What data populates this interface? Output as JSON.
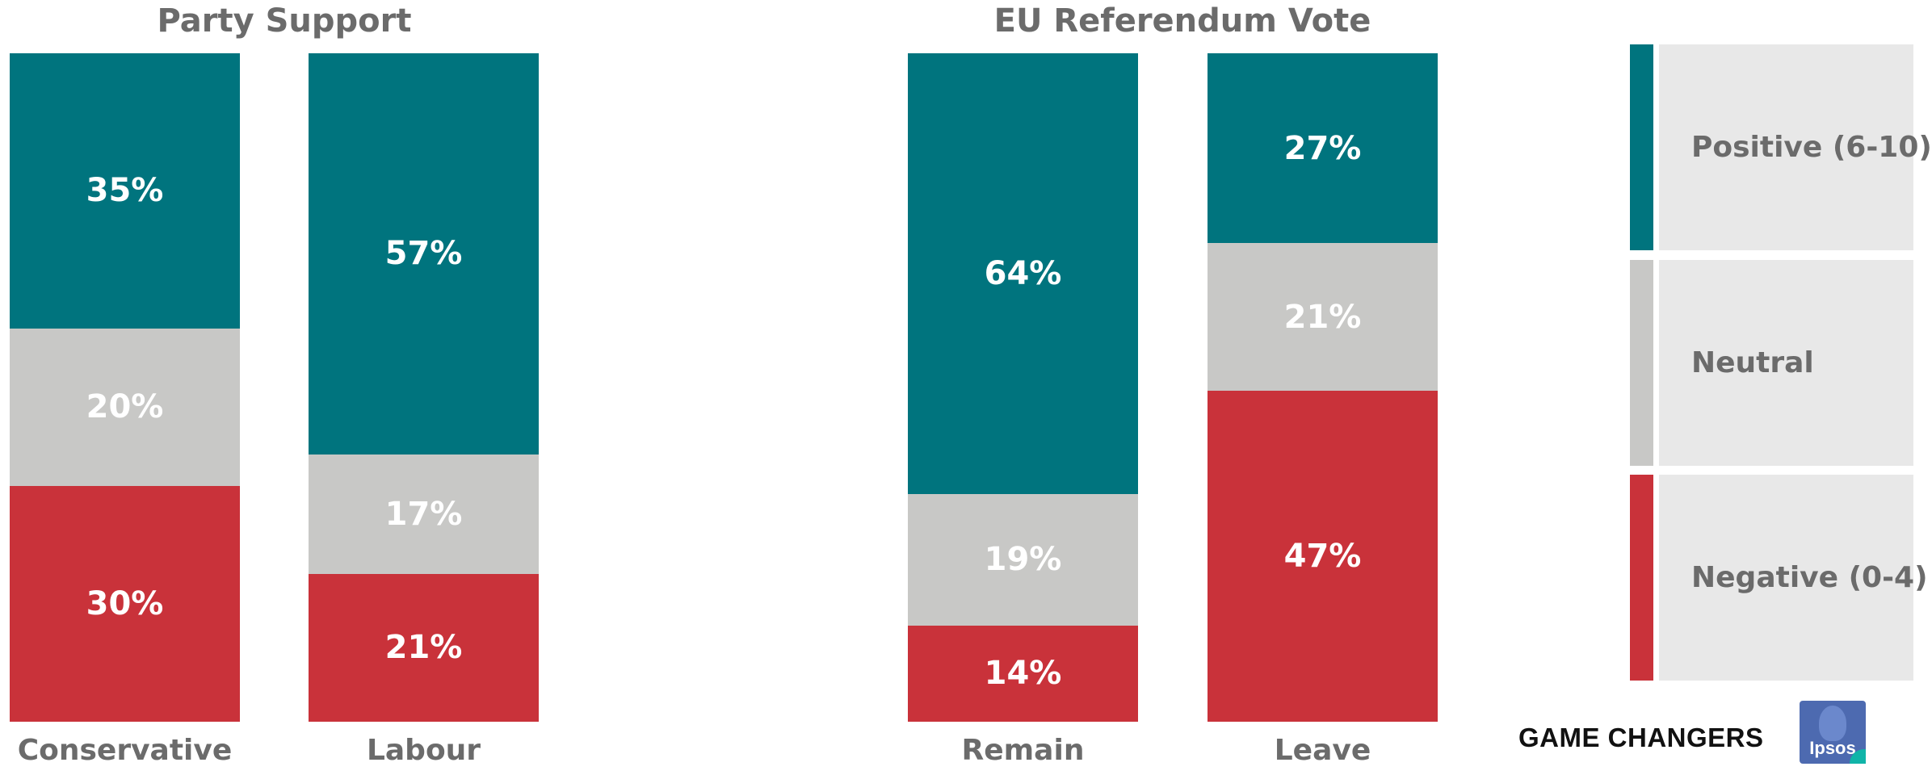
{
  "colors": {
    "positive": "#00747e",
    "neutral": "#c8c8c6",
    "negative": "#c9323a",
    "legend_box": "#e8e8e8",
    "title_text": "#6b6b6b"
  },
  "chart_data": [
    {
      "type": "bar",
      "stacked": true,
      "normalized": true,
      "title": "Party Support",
      "categories": [
        "Conservative",
        "Labour"
      ],
      "series": [
        {
          "name": "Negative (0-4)",
          "values": [
            30,
            21
          ],
          "labels": [
            "30%",
            "21%"
          ],
          "color_key": "negative"
        },
        {
          "name": "Neutral",
          "values": [
            20,
            17
          ],
          "labels": [
            "20%",
            "17%"
          ],
          "color_key": "neutral"
        },
        {
          "name": "Positive (6-10)",
          "values": [
            35,
            57
          ],
          "labels": [
            "35%",
            "57%"
          ],
          "color_key": "positive"
        }
      ]
    },
    {
      "type": "bar",
      "stacked": true,
      "normalized": true,
      "title": "EU Referendum Vote",
      "categories": [
        "Remain",
        "Leave"
      ],
      "series": [
        {
          "name": "Negative (0-4)",
          "values": [
            14,
            47
          ],
          "labels": [
            "14%",
            "47%"
          ],
          "color_key": "negative"
        },
        {
          "name": "Neutral",
          "values": [
            19,
            21
          ],
          "labels": [
            "19%",
            "21%"
          ],
          "color_key": "neutral"
        },
        {
          "name": "Positive (6-10)",
          "values": [
            64,
            27
          ],
          "labels": [
            "64%",
            "27%"
          ],
          "color_key": "positive"
        }
      ]
    }
  ],
  "legend": {
    "placement": "right",
    "items": [
      {
        "label": "Positive (6-10)",
        "color_key": "positive"
      },
      {
        "label": "Neutral",
        "color_key": "neutral"
      },
      {
        "label": "Negative (0-4)",
        "color_key": "negative"
      }
    ]
  },
  "brand": {
    "tagline": "GAME CHANGERS",
    "logo_text": "Ipsos"
  }
}
